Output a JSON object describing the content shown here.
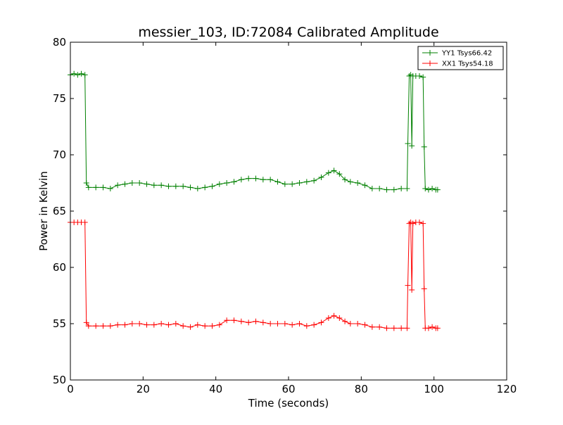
{
  "chart_data": {
    "type": "line",
    "title": "messier_103, ID:72084 Calibrated Amplitude",
    "xlabel": "Time (seconds)",
    "ylabel": "Power in Kelvin",
    "xlim": [
      0,
      120
    ],
    "ylim": [
      50,
      80
    ],
    "xticks": [
      "0",
      "20",
      "40",
      "60",
      "80",
      "100",
      "120"
    ],
    "yticks": [
      "50",
      "55",
      "60",
      "65",
      "70",
      "75",
      "80"
    ],
    "grid": false,
    "legend_position": "top-right",
    "marker": "+",
    "series": [
      {
        "name": "YY1 Tsys66.42",
        "color": "#008000",
        "points": [
          [
            0,
            77.1
          ],
          [
            1,
            77.2
          ],
          [
            2,
            77.1
          ],
          [
            3,
            77.2
          ],
          [
            4,
            77.1
          ],
          [
            4.4,
            67.5
          ],
          [
            5,
            67.1
          ],
          [
            7,
            67.1
          ],
          [
            9,
            67.1
          ],
          [
            11,
            67.0
          ],
          [
            13,
            67.3
          ],
          [
            15,
            67.4
          ],
          [
            17,
            67.5
          ],
          [
            19,
            67.5
          ],
          [
            21,
            67.4
          ],
          [
            23,
            67.3
          ],
          [
            25,
            67.3
          ],
          [
            27,
            67.2
          ],
          [
            29,
            67.2
          ],
          [
            31,
            67.2
          ],
          [
            33,
            67.1
          ],
          [
            35,
            67.0
          ],
          [
            37,
            67.1
          ],
          [
            39,
            67.2
          ],
          [
            41,
            67.4
          ],
          [
            43,
            67.5
          ],
          [
            45,
            67.6
          ],
          [
            47,
            67.8
          ],
          [
            49,
            67.9
          ],
          [
            51,
            67.9
          ],
          [
            53,
            67.8
          ],
          [
            55,
            67.8
          ],
          [
            57,
            67.6
          ],
          [
            59,
            67.4
          ],
          [
            61,
            67.4
          ],
          [
            63,
            67.5
          ],
          [
            65,
            67.6
          ],
          [
            67,
            67.7
          ],
          [
            69,
            68.0
          ],
          [
            71,
            68.4
          ],
          [
            72.5,
            68.6
          ],
          [
            74,
            68.3
          ],
          [
            75.5,
            67.8
          ],
          [
            77,
            67.6
          ],
          [
            79,
            67.5
          ],
          [
            81,
            67.3
          ],
          [
            83,
            67.0
          ],
          [
            85,
            67.0
          ],
          [
            87,
            66.9
          ],
          [
            89,
            66.9
          ],
          [
            91,
            67.0
          ],
          [
            92.6,
            67.0
          ],
          [
            92.8,
            71.0
          ],
          [
            93.2,
            77.0
          ],
          [
            93.6,
            77.1
          ],
          [
            93.9,
            70.8
          ],
          [
            94.2,
            77.0
          ],
          [
            95,
            77.0
          ],
          [
            96,
            77.0
          ],
          [
            97,
            76.9
          ],
          [
            97.3,
            70.7
          ],
          [
            97.6,
            67.0
          ],
          [
            98.5,
            66.9
          ],
          [
            99.5,
            67.0
          ],
          [
            100.5,
            66.9
          ],
          [
            101,
            66.9
          ]
        ]
      },
      {
        "name": "XX1 Tsys54.18",
        "color": "#ff0000",
        "points": [
          [
            0,
            64.0
          ],
          [
            1,
            64.0
          ],
          [
            2,
            64.0
          ],
          [
            3,
            64.0
          ],
          [
            4,
            64.0
          ],
          [
            4.4,
            55.1
          ],
          [
            5,
            54.8
          ],
          [
            7,
            54.8
          ],
          [
            9,
            54.8
          ],
          [
            11,
            54.8
          ],
          [
            13,
            54.9
          ],
          [
            15,
            54.9
          ],
          [
            17,
            55.0
          ],
          [
            19,
            55.0
          ],
          [
            21,
            54.9
          ],
          [
            23,
            54.9
          ],
          [
            25,
            55.0
          ],
          [
            27,
            54.9
          ],
          [
            29,
            55.0
          ],
          [
            31,
            54.8
          ],
          [
            33,
            54.7
          ],
          [
            35,
            54.9
          ],
          [
            37,
            54.8
          ],
          [
            39,
            54.8
          ],
          [
            41,
            54.9
          ],
          [
            43,
            55.3
          ],
          [
            45,
            55.3
          ],
          [
            47,
            55.2
          ],
          [
            49,
            55.1
          ],
          [
            51,
            55.2
          ],
          [
            53,
            55.1
          ],
          [
            55,
            55.0
          ],
          [
            57,
            55.0
          ],
          [
            59,
            55.0
          ],
          [
            61,
            54.9
          ],
          [
            63,
            55.0
          ],
          [
            65,
            54.8
          ],
          [
            67,
            54.9
          ],
          [
            69,
            55.1
          ],
          [
            71,
            55.5
          ],
          [
            72.5,
            55.7
          ],
          [
            74,
            55.5
          ],
          [
            75.5,
            55.2
          ],
          [
            77,
            55.0
          ],
          [
            79,
            55.0
          ],
          [
            81,
            54.9
          ],
          [
            83,
            54.7
          ],
          [
            85,
            54.7
          ],
          [
            87,
            54.6
          ],
          [
            89,
            54.6
          ],
          [
            91,
            54.6
          ],
          [
            92.6,
            54.6
          ],
          [
            92.8,
            58.4
          ],
          [
            93.2,
            63.9
          ],
          [
            93.6,
            64.0
          ],
          [
            93.9,
            58.0
          ],
          [
            94.2,
            63.9
          ],
          [
            95,
            64.0
          ],
          [
            96,
            64.0
          ],
          [
            97,
            63.9
          ],
          [
            97.3,
            58.1
          ],
          [
            97.6,
            54.6
          ],
          [
            98.5,
            54.6
          ],
          [
            99.5,
            54.7
          ],
          [
            100.5,
            54.6
          ],
          [
            101,
            54.6
          ]
        ]
      }
    ]
  }
}
